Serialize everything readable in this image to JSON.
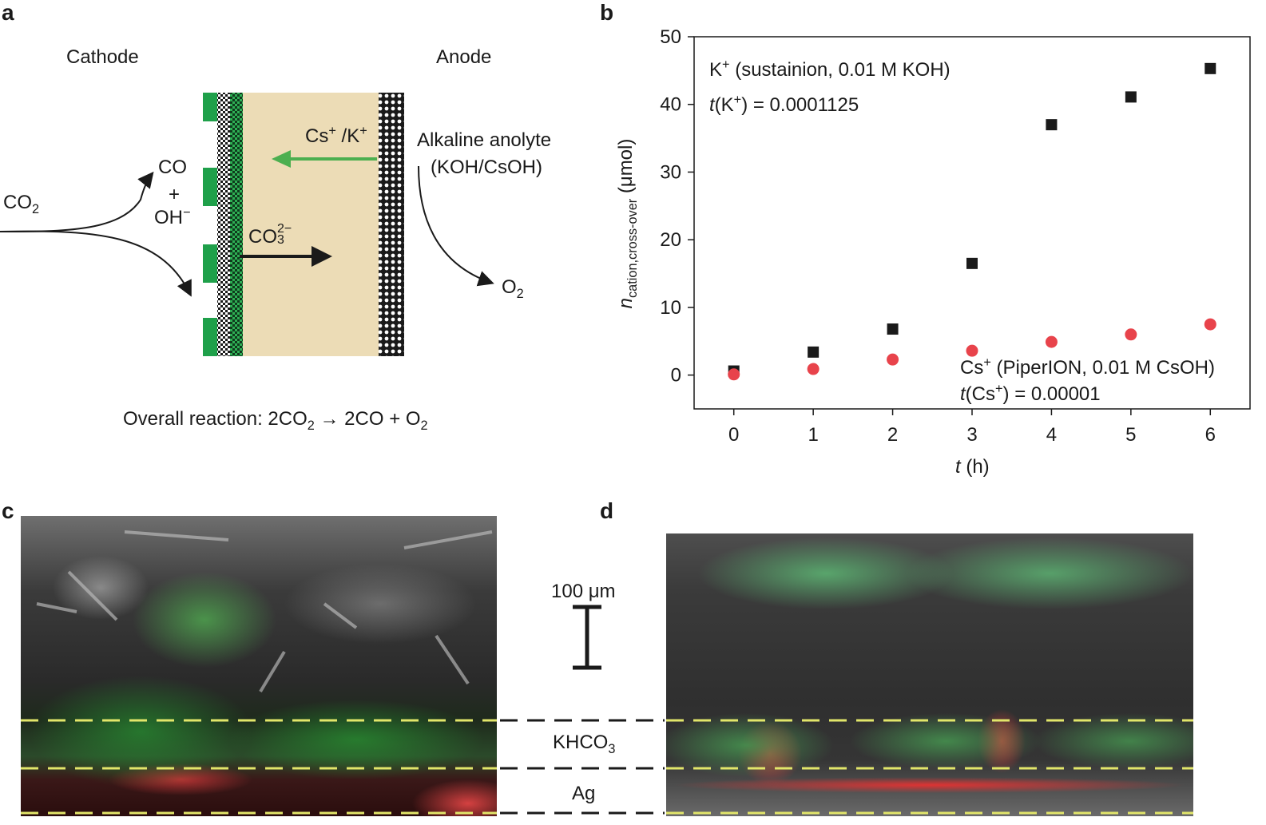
{
  "panel_a": {
    "letter": "a",
    "cathode": "Cathode",
    "anode": "Anode",
    "co2_in": "CO",
    "co2_in_sub": "2",
    "co": "CO",
    "plus": "+",
    "oh": "OH",
    "oh_sup": "−",
    "cation_cs": "Cs",
    "cation_cs_sup": "+",
    "cation_sep": " /K",
    "cation_k_sup": "+",
    "carbonate": "CO",
    "carbonate_sup": "2−",
    "carbonate_sub": "3",
    "anolyte_line1": "Alkaline anolyte",
    "anolyte_line2": "(KOH/CsOH)",
    "o2": "O",
    "o2_sub": "2",
    "overall_prefix": "Overall reaction: 2CO",
    "overall_sub1": "2",
    "overall_mid": " → 2CO + O",
    "overall_sub2": "2",
    "colors": {
      "membrane": "#ecdcb6",
      "green_arrow": "#4caf50",
      "gde_green": "#1fa04a"
    }
  },
  "panel_b": {
    "letter": "b",
    "ylabel_n": "n",
    "ylabel_sub": "cation,cross-over",
    "ylabel_unit": " (μmol)",
    "xlabel_t": "t",
    "xlabel_unit": " (h)",
    "k_label_prefix": "K",
    "k_label_sup": "+",
    "k_label_suffix": " (sustainion, 0.01 M KOH)",
    "k_t_prefix": "t",
    "k_t_mid": "(K",
    "k_t_sup": "+",
    "k_t_suffix": ") = 0.0001125",
    "cs_label_prefix": "Cs",
    "cs_label_sup": "+",
    "cs_label_suffix": " (PiperION, 0.01 M CsOH)",
    "cs_t_prefix": "t",
    "cs_t_mid": "(Cs",
    "cs_t_sup": "+",
    "cs_t_suffix": ") = 0.00001"
  },
  "chart_data": {
    "type": "scatter",
    "x": [
      0,
      1,
      2,
      3,
      4,
      5,
      6
    ],
    "xlim": [
      -0.5,
      6.5
    ],
    "ylim": [
      -5,
      50
    ],
    "xticks": [
      "0",
      "1",
      "2",
      "3",
      "4",
      "5",
      "6"
    ],
    "yticks": [
      "0",
      "10",
      "20",
      "30",
      "40",
      "50"
    ],
    "series": [
      {
        "name": "K+ (sustainion, 0.01 M KOH)",
        "marker": "square",
        "color": "#1a1a1a",
        "values": [
          0.6,
          3.4,
          6.8,
          16.5,
          37.0,
          41.1,
          45.3
        ]
      },
      {
        "name": "Cs+ (PiperION, 0.01 M CsOH)",
        "marker": "circle",
        "color": "#e8434b",
        "values": [
          0.1,
          0.9,
          2.3,
          3.6,
          4.9,
          6.0,
          7.5
        ]
      }
    ]
  },
  "panel_c": {
    "letter": "c"
  },
  "panel_d": {
    "letter": "d",
    "scale_label": "100 μm",
    "khco3": "KHCO",
    "khco3_sub": "3",
    "ag": "Ag"
  }
}
